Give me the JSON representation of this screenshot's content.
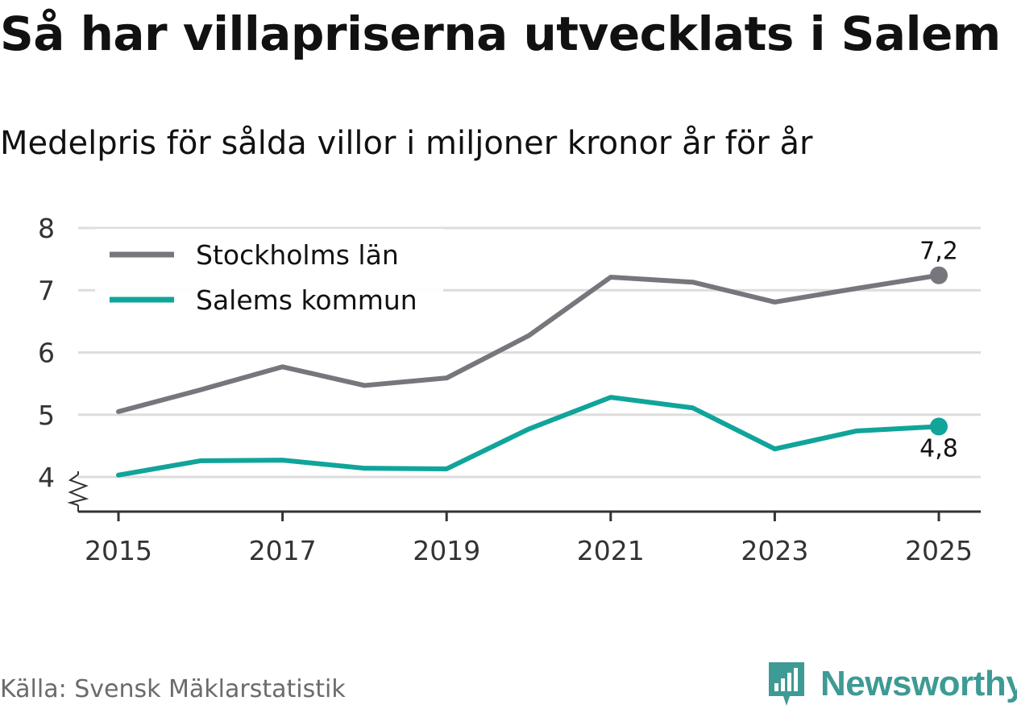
{
  "title": "Så har villapriserna utvecklats i Salem",
  "subtitle": "Medelpris för sålda villor i miljoner kronor år för år",
  "source": "Källa: Svensk Mäklarstatistik",
  "brand": {
    "name": "Newsworthy",
    "color": "#3e9a94"
  },
  "chart_data": {
    "type": "line",
    "title": "Så har villapriserna utvecklats i Salem",
    "xlabel": "",
    "ylabel": "Medelpris för sålda villor i miljoner kronor",
    "x": [
      2015,
      2016,
      2017,
      2018,
      2019,
      2020,
      2021,
      2022,
      2023,
      2024,
      2025
    ],
    "x_ticks": [
      "2015",
      "2017",
      "2019",
      "2021",
      "2023",
      "2025"
    ],
    "y_ticks": [
      "4",
      "5",
      "6",
      "7",
      "8"
    ],
    "ylim": [
      4,
      8
    ],
    "y_axis_break": true,
    "grid": true,
    "legend_position": "top-left",
    "series": [
      {
        "name": "Stockholms län",
        "color": "#76767c",
        "values": [
          5.05,
          5.4,
          5.77,
          5.47,
          5.59,
          6.27,
          7.21,
          7.13,
          6.81,
          7.03,
          7.24
        ],
        "end_label": "7,2"
      },
      {
        "name": "Salems kommun",
        "color": "#10a49a",
        "values": [
          4.03,
          4.26,
          4.27,
          4.14,
          4.13,
          4.77,
          5.28,
          5.11,
          4.45,
          4.74,
          4.81
        ],
        "end_label": "4,8"
      }
    ]
  }
}
